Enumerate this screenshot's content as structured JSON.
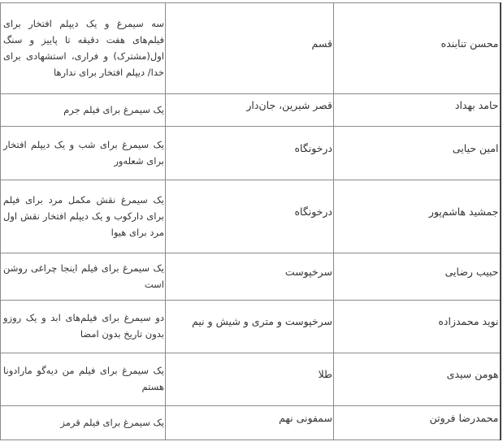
{
  "rows": [
    {
      "name": "محسن تنابنده",
      "film": "قسم",
      "award": "سه سیمرغ و یک دیپلم افتخار برای فیلم‌های هفت دقیقه تا پاییز و سنگ اول(مشترک) و فراری، استشهادی برای خدا/ دیپلم افتخار برای ندارها"
    },
    {
      "name": "حامد بهداد",
      "film": "قصر شیرین، جان‌دار",
      "award": "یک سیمرغ برای فیلم جرم"
    },
    {
      "name": "امین حیایی",
      "film": "درخونگاه",
      "award": "یک سیمرغ برای شب و یک دیپلم افتخار برای شعله‌ور"
    },
    {
      "name": "جمشید هاشم‌پور",
      "film": "درخونگاه",
      "award": "یک سیمرغ نقش مکمل مرد برای فیلم برای دارکوب و یک دیپلم افتخار نقش اول مرد برای هیوا"
    },
    {
      "name": "حبیب رضایی",
      "film": "سرخپوست",
      "award": "یک سیمرغ برای فیلم اینجا چراغی روشن است"
    },
    {
      "name": "نوید محمدزاده",
      "film": "سرخپوست و متری و شیش و نیم",
      "award": "دو سیمرغ برای فیلم‌های ابد و یک روزو بدون تاریخ بدون امضا"
    },
    {
      "name": "هومن سیدی",
      "film": "طلا",
      "award": "یک سیمرغ برای فیلم من دیه‌گو مارادونا هستم"
    },
    {
      "name": "محمدرضا فروتن",
      "film": "سمفونی نهم",
      "award": "یک سیمرغ برای فیلم قرمز"
    }
  ]
}
